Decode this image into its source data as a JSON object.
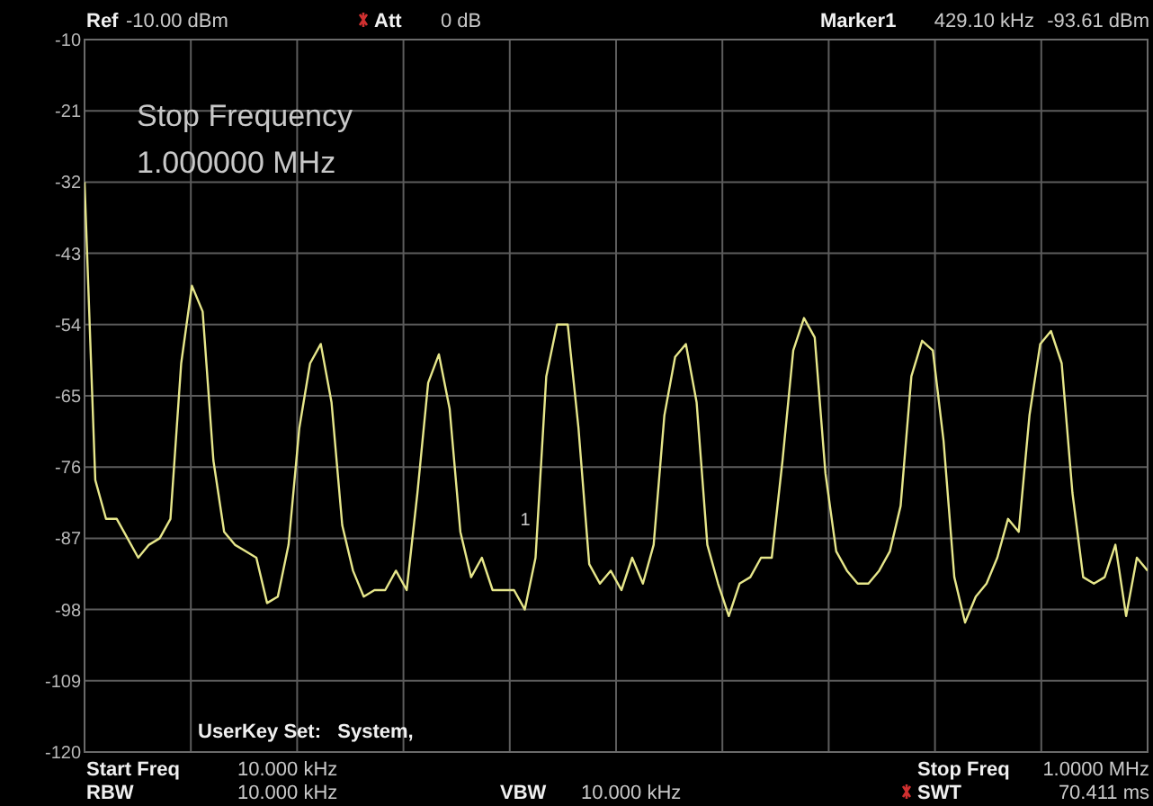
{
  "chart_data": {
    "type": "line",
    "categories": [
      null,
      null,
      null,
      null,
      null,
      null,
      null,
      null,
      null,
      null,
      null,
      null,
      null,
      null,
      null,
      null,
      null,
      null,
      null,
      null,
      null,
      null,
      null,
      null,
      null,
      null,
      null,
      null,
      null,
      null,
      null,
      null,
      null,
      null,
      null,
      null,
      null,
      null,
      null,
      null,
      null,
      null,
      null,
      null,
      null,
      null,
      null,
      null,
      null,
      null,
      null,
      null,
      null,
      null,
      null,
      null,
      null,
      null,
      null,
      null,
      null,
      null,
      null,
      null,
      null,
      null,
      null,
      null,
      null,
      null,
      null,
      null,
      null,
      null,
      null,
      null,
      null,
      null,
      null,
      null,
      null,
      null,
      null,
      null,
      null,
      null,
      null,
      null,
      null,
      null,
      null,
      null,
      null,
      null,
      null,
      null,
      null,
      null,
      null,
      null
    ],
    "ylim": [
      -120,
      -10
    ],
    "yticks": [
      -10,
      -21,
      -32,
      -43,
      -54,
      -65,
      -76,
      -87,
      -98,
      -109,
      -120
    ],
    "grid": true,
    "line_style": "solid",
    "marker": "none",
    "series": [
      {
        "color": "#e6e68a",
        "values": [
          -32,
          -78,
          -84,
          -84,
          -87,
          -90,
          -88,
          -87,
          -84,
          -60,
          -48,
          -52,
          -75,
          -86,
          -88,
          -89,
          -90,
          -97,
          -96,
          -88,
          -70,
          -60,
          -57,
          -66,
          -85,
          -92,
          -96,
          -95,
          -95,
          -92,
          -95,
          -80,
          -63,
          -58.6,
          -67,
          -86,
          -93,
          -90,
          -95,
          -95,
          -95,
          -98,
          -90,
          -62,
          -54,
          -54,
          -70,
          -91,
          -94,
          -92,
          -95,
          -90,
          -94,
          -88,
          -68,
          -59,
          -57,
          -66,
          -88,
          -94,
          -99,
          -94,
          -93,
          -90,
          -90,
          -75,
          -58,
          -53,
          -56,
          -77,
          -89,
          -92,
          -94,
          -94,
          -92,
          -89,
          -82,
          -62,
          -56.5,
          -58,
          -72,
          -93,
          -100,
          -96,
          -94,
          -90,
          -84,
          -86,
          -68,
          -57,
          -55,
          -60,
          -80,
          -93,
          -94,
          -93,
          -88,
          -99,
          -90,
          -92
        ]
      }
    ],
    "annotations": [
      "Ref",
      "-10.00 dBm",
      "Att",
      "0 dB",
      "Marker1",
      "429.10 kHz",
      "-93.61 dBm",
      "Stop Frequency",
      "1.000000 MHz",
      "UserKey Set:   System,",
      "Start Freq",
      "10.000 kHz",
      "RBW",
      "10.000 kHz",
      "VBW",
      "10.000 kHz",
      "Stop Freq",
      "1.0000 MHz",
      "SWT",
      "70.411 ms",
      "1"
    ]
  }
}
